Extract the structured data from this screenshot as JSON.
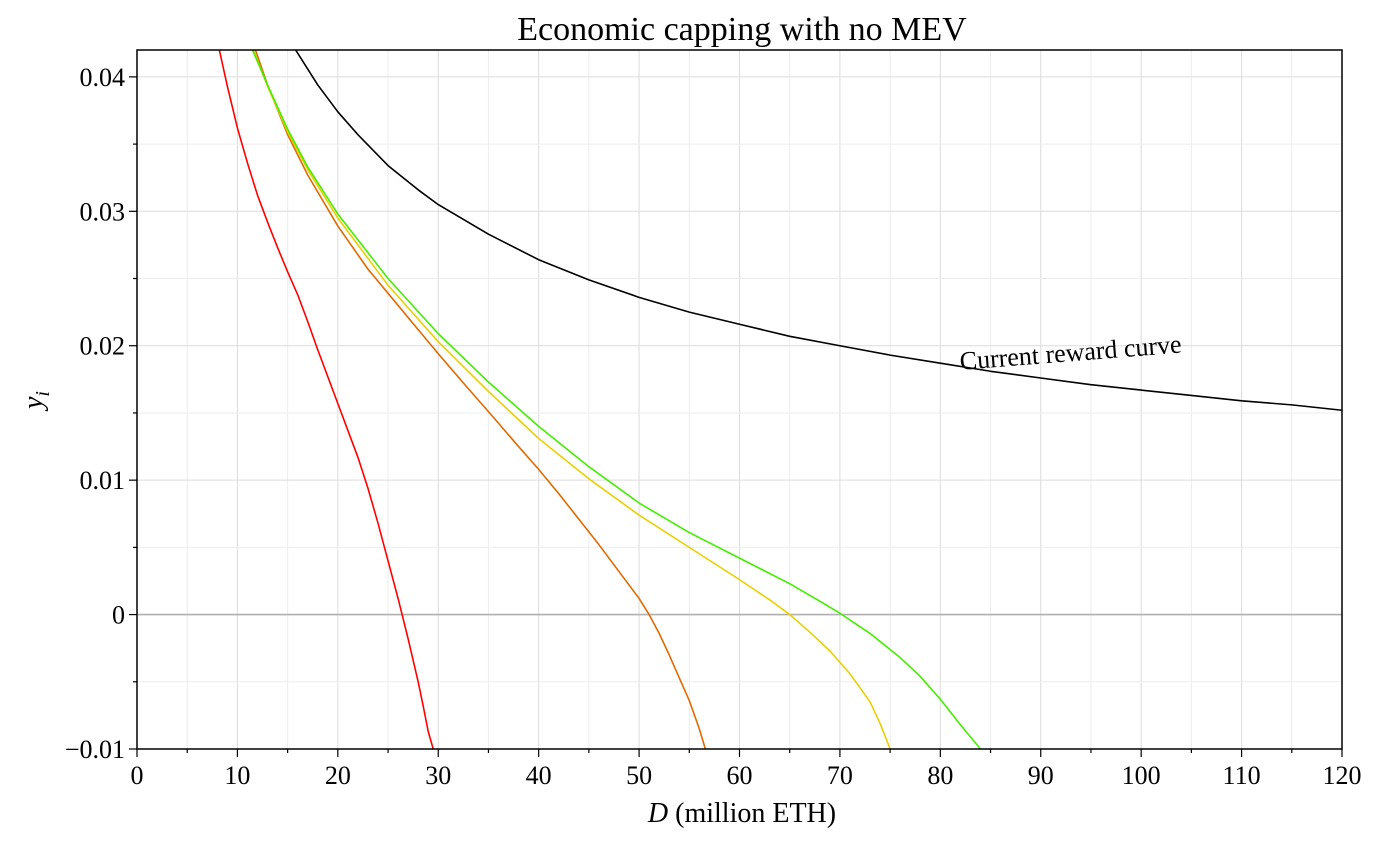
{
  "chart_data": {
    "type": "line",
    "title": "Economic capping with no MEV",
    "xlabel": {
      "var": "D",
      "rest": " (million ETH)"
    },
    "ylabel": {
      "var": "y",
      "sub": "i"
    },
    "xlim": [
      0,
      120
    ],
    "ylim": [
      -0.01,
      0.042
    ],
    "x_ticks": [
      0,
      10,
      20,
      30,
      40,
      50,
      60,
      70,
      80,
      90,
      100,
      110,
      120
    ],
    "x_tick_labels": [
      "0",
      "10",
      "20",
      "30",
      "40",
      "50",
      "60",
      "70",
      "80",
      "90",
      "100",
      "110",
      "120"
    ],
    "y_ticks": [
      -0.01,
      0,
      0.01,
      0.02,
      0.03,
      0.04
    ],
    "y_tick_labels": [
      "−0.01",
      "0",
      "0.01",
      "0.02",
      "0.03",
      "0.04"
    ],
    "grid": true,
    "zero_line": 0,
    "annotations": [
      {
        "text": "Current reward curve",
        "x": 82,
        "y": 0.0182,
        "rotation": -4.5
      }
    ],
    "series": [
      {
        "color": "#000000",
        "x": [
          15.8,
          18,
          20,
          22,
          25,
          28,
          30,
          35,
          40,
          45,
          50,
          55,
          60,
          65,
          70,
          75,
          80,
          85,
          90,
          95,
          100,
          105,
          110,
          115,
          120
        ],
        "y": [
          0.042,
          0.0394,
          0.0374,
          0.0357,
          0.0334,
          0.0316,
          0.0305,
          0.0283,
          0.0264,
          0.0249,
          0.0236,
          0.0225,
          0.0216,
          0.0207,
          0.02,
          0.0193,
          0.0187,
          0.0181,
          0.0176,
          0.0171,
          0.0167,
          0.0163,
          0.0159,
          0.0156,
          0.0152
        ]
      },
      {
        "color": "#ff0000",
        "x": [
          8.2,
          9,
          10,
          11,
          12,
          13,
          14,
          15,
          16,
          17,
          18,
          19,
          20,
          21,
          22,
          23,
          24,
          25,
          26,
          27,
          28,
          28.5,
          29,
          29.5
        ],
        "y": [
          0.042,
          0.0393,
          0.0362,
          0.0336,
          0.0312,
          0.0292,
          0.0273,
          0.0255,
          0.0238,
          0.0218,
          0.0197,
          0.0177,
          0.0157,
          0.0137,
          0.0117,
          0.0094,
          0.0068,
          0.004,
          0.0012,
          -0.0018,
          -0.005,
          -0.0068,
          -0.0087,
          -0.01
        ]
      },
      {
        "color": "#e06a00",
        "x": [
          11.8,
          13,
          15,
          17,
          20,
          23,
          25,
          28,
          30,
          33,
          35,
          38,
          40,
          42,
          44,
          46,
          48,
          50,
          51,
          52,
          53,
          54,
          55,
          56,
          56.6
        ],
        "y": [
          0.042,
          0.0394,
          0.0357,
          0.0327,
          0.0289,
          0.0257,
          0.0239,
          0.0212,
          0.0194,
          0.0168,
          0.0151,
          0.0125,
          0.0108,
          0.009,
          0.0071,
          0.0052,
          0.0032,
          0.0012,
          0.0,
          -0.0014,
          -0.003,
          -0.0047,
          -0.0064,
          -0.0085,
          -0.01
        ]
      },
      {
        "color": "#e8d000",
        "x": [
          11.6,
          13,
          15,
          17,
          20,
          25,
          30,
          35,
          40,
          45,
          50,
          55,
          60,
          63,
          65,
          67,
          69,
          71,
          73,
          74,
          75
        ],
        "y": [
          0.042,
          0.0393,
          0.0359,
          0.0331,
          0.0295,
          0.0245,
          0.0203,
          0.0166,
          0.0131,
          0.0101,
          0.0074,
          0.005,
          0.0026,
          0.0011,
          0.0,
          -0.0013,
          -0.0027,
          -0.0044,
          -0.0065,
          -0.0081,
          -0.01
        ]
      },
      {
        "color": "#44ee00",
        "x": [
          11.5,
          13,
          15,
          17,
          20,
          25,
          30,
          35,
          40,
          45,
          50,
          55,
          60,
          65,
          68,
          70,
          73,
          76,
          78,
          80,
          82,
          83,
          84
        ],
        "y": [
          0.042,
          0.0394,
          0.0361,
          0.0333,
          0.0298,
          0.025,
          0.0209,
          0.0173,
          0.014,
          0.011,
          0.0083,
          0.0061,
          0.0042,
          0.0023,
          0.001,
          0.0001,
          -0.0014,
          -0.0032,
          -0.0046,
          -0.0063,
          -0.0082,
          -0.0091,
          -0.01
        ]
      }
    ]
  }
}
